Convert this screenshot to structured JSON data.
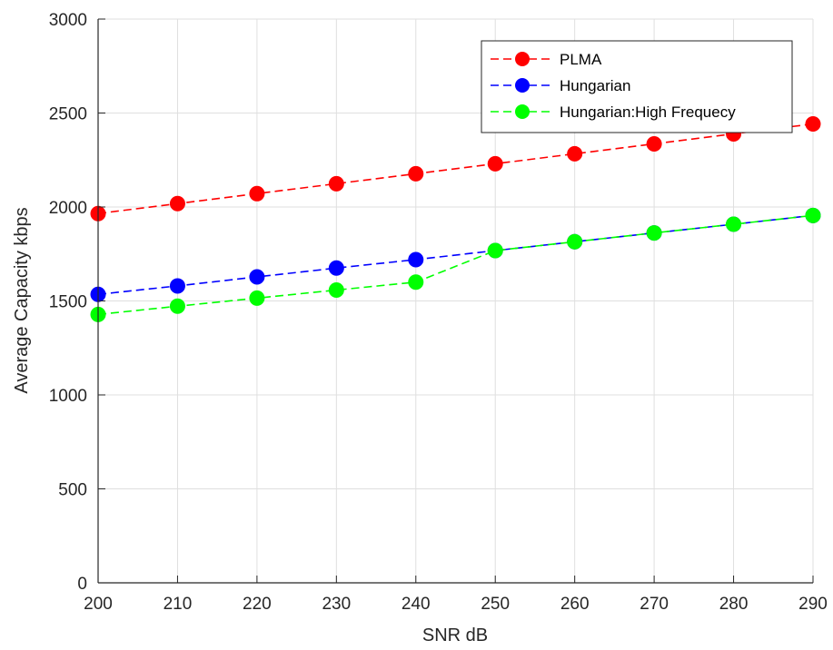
{
  "chart_data": {
    "type": "line",
    "title": "",
    "xlabel": "SNR dB",
    "ylabel": "Average Capacity kbps",
    "x": [
      200,
      210,
      220,
      230,
      240,
      250,
      260,
      270,
      280,
      290
    ],
    "xlim": [
      200,
      290
    ],
    "ylim": [
      0,
      3000
    ],
    "xticks": [
      "200",
      "210",
      "220",
      "230",
      "240",
      "250",
      "260",
      "270",
      "280",
      "290"
    ],
    "yticks": [
      "0",
      "500",
      "1000",
      "1500",
      "2000",
      "2500",
      "3000"
    ],
    "grid": true,
    "legend_position": "top-right",
    "series": [
      {
        "name": "PLMA",
        "color": "#ff0000",
        "marker": "circle",
        "line_style": "dashed",
        "values": [
          1965,
          2018,
          2071,
          2124,
          2177,
          2230,
          2283,
          2336,
          2389,
          2442
        ]
      },
      {
        "name": "Hungarian",
        "color": "#0000ff",
        "marker": "circle",
        "line_style": "dashed",
        "values": [
          1535,
          1580,
          1628,
          1675,
          1720,
          1768,
          1815,
          1862,
          1908,
          1955
        ]
      },
      {
        "name": "Hungarian:High Frequecy",
        "color": "#00ff00",
        "marker": "circle",
        "line_style": "dashed",
        "values": [
          1428,
          1472,
          1515,
          1558,
          1600,
          1768,
          1815,
          1862,
          1908,
          1955
        ]
      }
    ]
  }
}
